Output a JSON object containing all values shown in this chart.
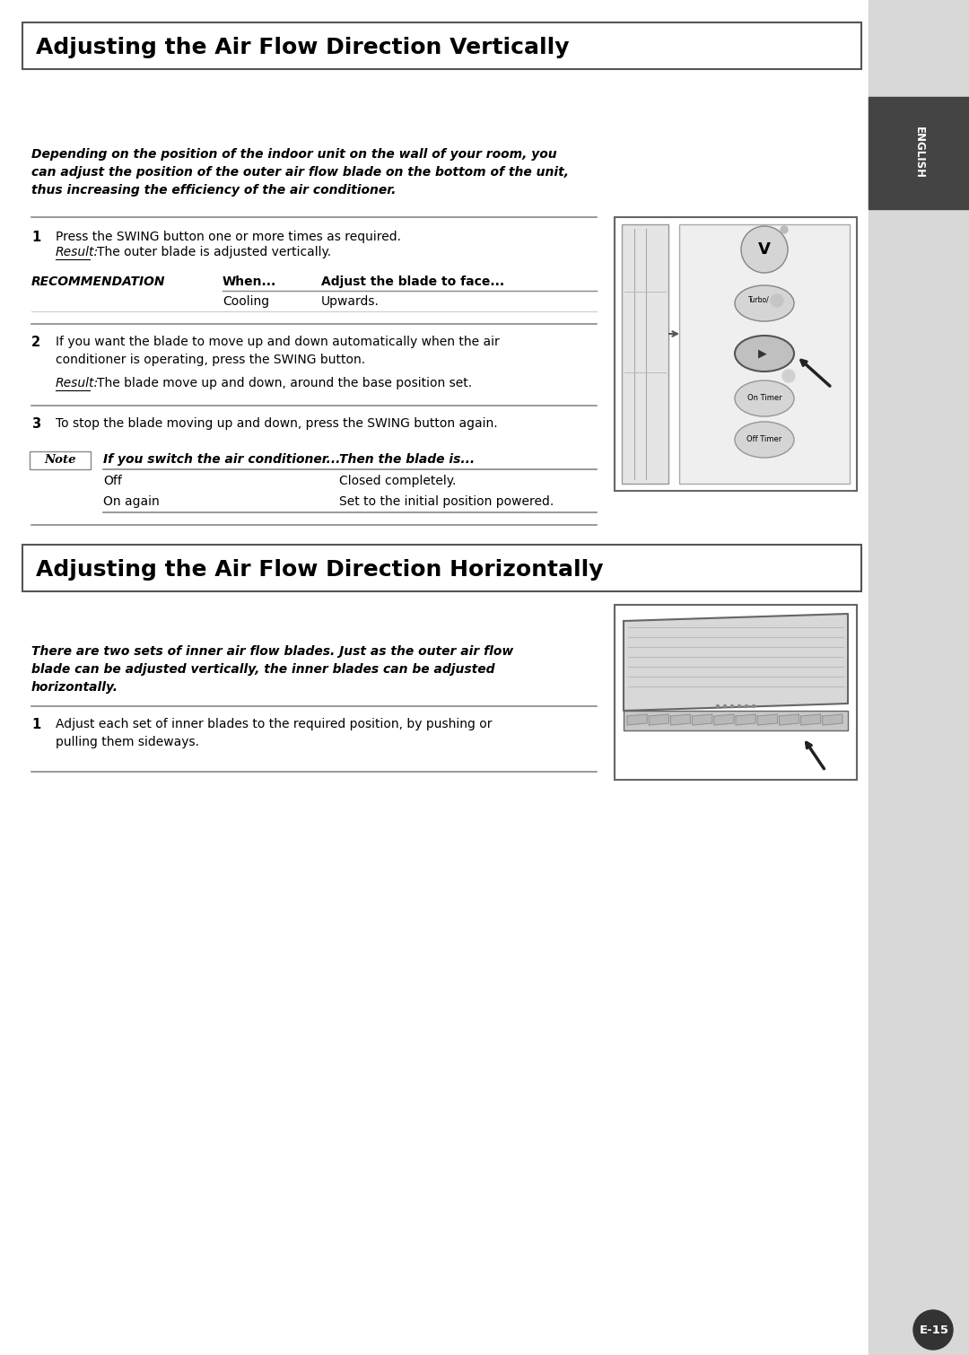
{
  "bg_color": "#ffffff",
  "sidebar_color": "#d8d8d8",
  "page_bg": "#f0f0f0",
  "section1_title": "Adjusting the Air Flow Direction Vertically",
  "section2_title": "Adjusting the Air Flow Direction Horizontally",
  "section1_intro": "Depending on the position of the indoor unit on the wall of your room, you\ncan adjust the position of the outer air flow blade on the bottom of the unit,\nthus increasing the efficiency of the air conditioner.",
  "rec_header_col1": "RECOMMENDATION",
  "rec_header_col2": "When...",
  "rec_header_col3": "Adjust the blade to face...",
  "rec_row1_col1": "Cooling",
  "rec_row1_col2": "Upwards.",
  "step3_text": "To stop the blade moving up and down, press the SWING button again.",
  "note_header_col2": "If you switch the air conditioner...",
  "note_header_col3": "Then the blade is...",
  "note_row1_col1": "Off",
  "note_row1_col2": "Closed completely.",
  "note_row2_col1": "On again",
  "note_row2_col2": "Set to the initial position powered.",
  "section2_intro": "There are two sets of inner air flow blades. Just as the outer air flow\nblade can be adjusted vertically, the inner blades can be adjusted\nhorizontally.",
  "section2_step1": "Adjust each set of inner blades to the required position, by pushing or\npulling them sideways.",
  "page_num": "E-15",
  "english_tab": "ENGLISH"
}
